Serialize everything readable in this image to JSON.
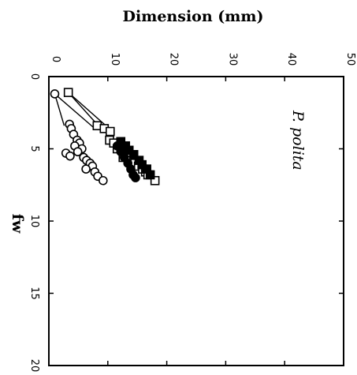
{
  "chart_data": {
    "type": "scatter",
    "title": "",
    "xlabel": "fw",
    "ylabel": "Dimension (mm)",
    "annotation": "P. polita",
    "xlim": [
      0,
      20
    ],
    "ylim": [
      0,
      50
    ],
    "x_ticks": [
      "0",
      "5",
      "10",
      "15",
      "20"
    ],
    "y_ticks": [
      "0",
      "10",
      "20",
      "30",
      "40",
      "50"
    ],
    "grid": false,
    "legend": "none",
    "series": [
      {
        "marker": "circle",
        "fill": "open",
        "points": [
          [
            1.2,
            1.0
          ],
          [
            3.3,
            3.5
          ],
          [
            3.6,
            3.8
          ],
          [
            4.0,
            4.2
          ],
          [
            4.4,
            4.8
          ],
          [
            4.6,
            5.2
          ],
          [
            4.8,
            4.4
          ],
          [
            5.0,
            5.6
          ],
          [
            5.2,
            4.9
          ],
          [
            5.3,
            2.9
          ],
          [
            5.5,
            3.6
          ],
          [
            5.6,
            5.9
          ],
          [
            5.8,
            6.4
          ],
          [
            6.0,
            7.0
          ],
          [
            6.2,
            7.4
          ],
          [
            6.4,
            6.3
          ],
          [
            6.6,
            7.8
          ],
          [
            6.9,
            8.3
          ],
          [
            7.2,
            9.2
          ]
        ]
      },
      {
        "marker": "square",
        "fill": "open",
        "points": [
          [
            1.1,
            3.3
          ],
          [
            3.4,
            8.2
          ],
          [
            3.6,
            9.4
          ],
          [
            3.8,
            10.4
          ],
          [
            4.4,
            10.3
          ],
          [
            4.6,
            11.0
          ],
          [
            4.8,
            12.3
          ],
          [
            5.0,
            11.6
          ],
          [
            5.2,
            12.8
          ],
          [
            5.4,
            13.4
          ],
          [
            5.6,
            12.6
          ],
          [
            5.8,
            13.8
          ],
          [
            6.0,
            14.6
          ],
          [
            6.2,
            15.2
          ],
          [
            6.4,
            15.9
          ],
          [
            6.6,
            16.4
          ],
          [
            6.8,
            16.8
          ],
          [
            7.2,
            18.0
          ]
        ]
      },
      {
        "marker": "square",
        "fill": "filled",
        "points": [
          [
            4.5,
            12.2
          ],
          [
            4.8,
            13.0
          ],
          [
            5.1,
            13.6
          ],
          [
            5.4,
            14.4
          ],
          [
            5.8,
            15.3
          ],
          [
            6.1,
            15.8
          ],
          [
            6.4,
            16.6
          ],
          [
            6.8,
            17.2
          ]
        ]
      },
      {
        "marker": "circle",
        "fill": "filled",
        "points": [
          [
            4.8,
            11.6
          ],
          [
            5.2,
            12.2
          ],
          [
            5.6,
            12.8
          ],
          [
            6.0,
            13.4
          ],
          [
            6.4,
            13.9
          ],
          [
            6.8,
            14.3
          ],
          [
            7.0,
            14.7
          ]
        ]
      }
    ],
    "connecting_lines": [
      {
        "from": [
          1.2,
          1.0
        ],
        "to": [
          3.4,
          2.6
        ]
      },
      {
        "from": [
          1.2,
          1.0
        ],
        "to": [
          3.6,
          7.8
        ]
      },
      {
        "from": [
          1.1,
          3.3
        ],
        "to": [
          3.4,
          8.4
        ]
      },
      {
        "from": [
          1.1,
          3.3
        ],
        "to": [
          3.8,
          10.8
        ]
      }
    ]
  }
}
